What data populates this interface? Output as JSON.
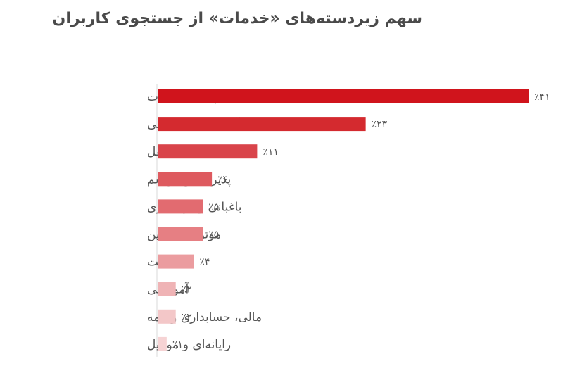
{
  "chart_data": {
    "type": "bar",
    "orientation": "horizontal",
    "title": "سهم زیردسته‌های «خدمات» از جستجوی کاربران",
    "xlabel": "",
    "ylabel": "",
    "grid": false,
    "legend": "none",
    "xlim": [
      0,
      41
    ],
    "categories": [
      "پیشه و مهارت",
      "آرایشگری و زیبایی",
      "حمل و نقل",
      "پذیرایی و مراسم",
      "باغبانی و درختکاری",
      "موتور و ماشین",
      "نظافت",
      "آموزشی",
      "مالی، حسابداری و بیمه",
      "رایانه‌ای و موبایل"
    ],
    "values": [
      41,
      23,
      11,
      6,
      5,
      5,
      4,
      2,
      2,
      1
    ],
    "value_labels": [
      "٪۴۱",
      "٪۲۳",
      "٪۱۱",
      "٪۶",
      "٪۵",
      "٪۵",
      "٪۴",
      "٪۲",
      "٪۲",
      "٪۱"
    ],
    "colors": [
      "#d0141c",
      "#d42a2f",
      "#d9444a",
      "#de5a5f",
      "#e26b70",
      "#e67f83",
      "#eb9c9f",
      "#efb3b5",
      "#f3c7c8",
      "#f6d3d4"
    ]
  }
}
